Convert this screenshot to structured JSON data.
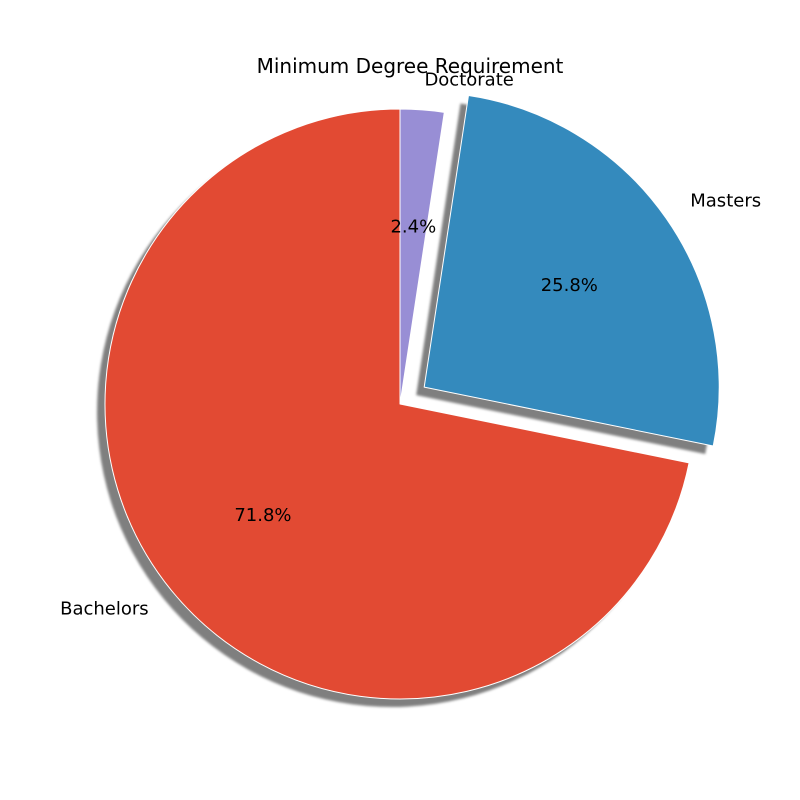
{
  "chart_data": {
    "type": "pie",
    "title": "Minimum Degree Requirement",
    "categories": [
      "Doctorate",
      "Masters",
      "Bachelors"
    ],
    "values": [
      2.4,
      25.8,
      71.8
    ],
    "percent_labels": [
      "2.4%",
      "25.8%",
      "71.8%"
    ],
    "colors": [
      "#988ED5",
      "#348ABD",
      "#E24A33"
    ],
    "exploded": [
      false,
      true,
      false
    ],
    "shadow": true,
    "start_angle_deg": 90,
    "direction": "clockwise"
  }
}
